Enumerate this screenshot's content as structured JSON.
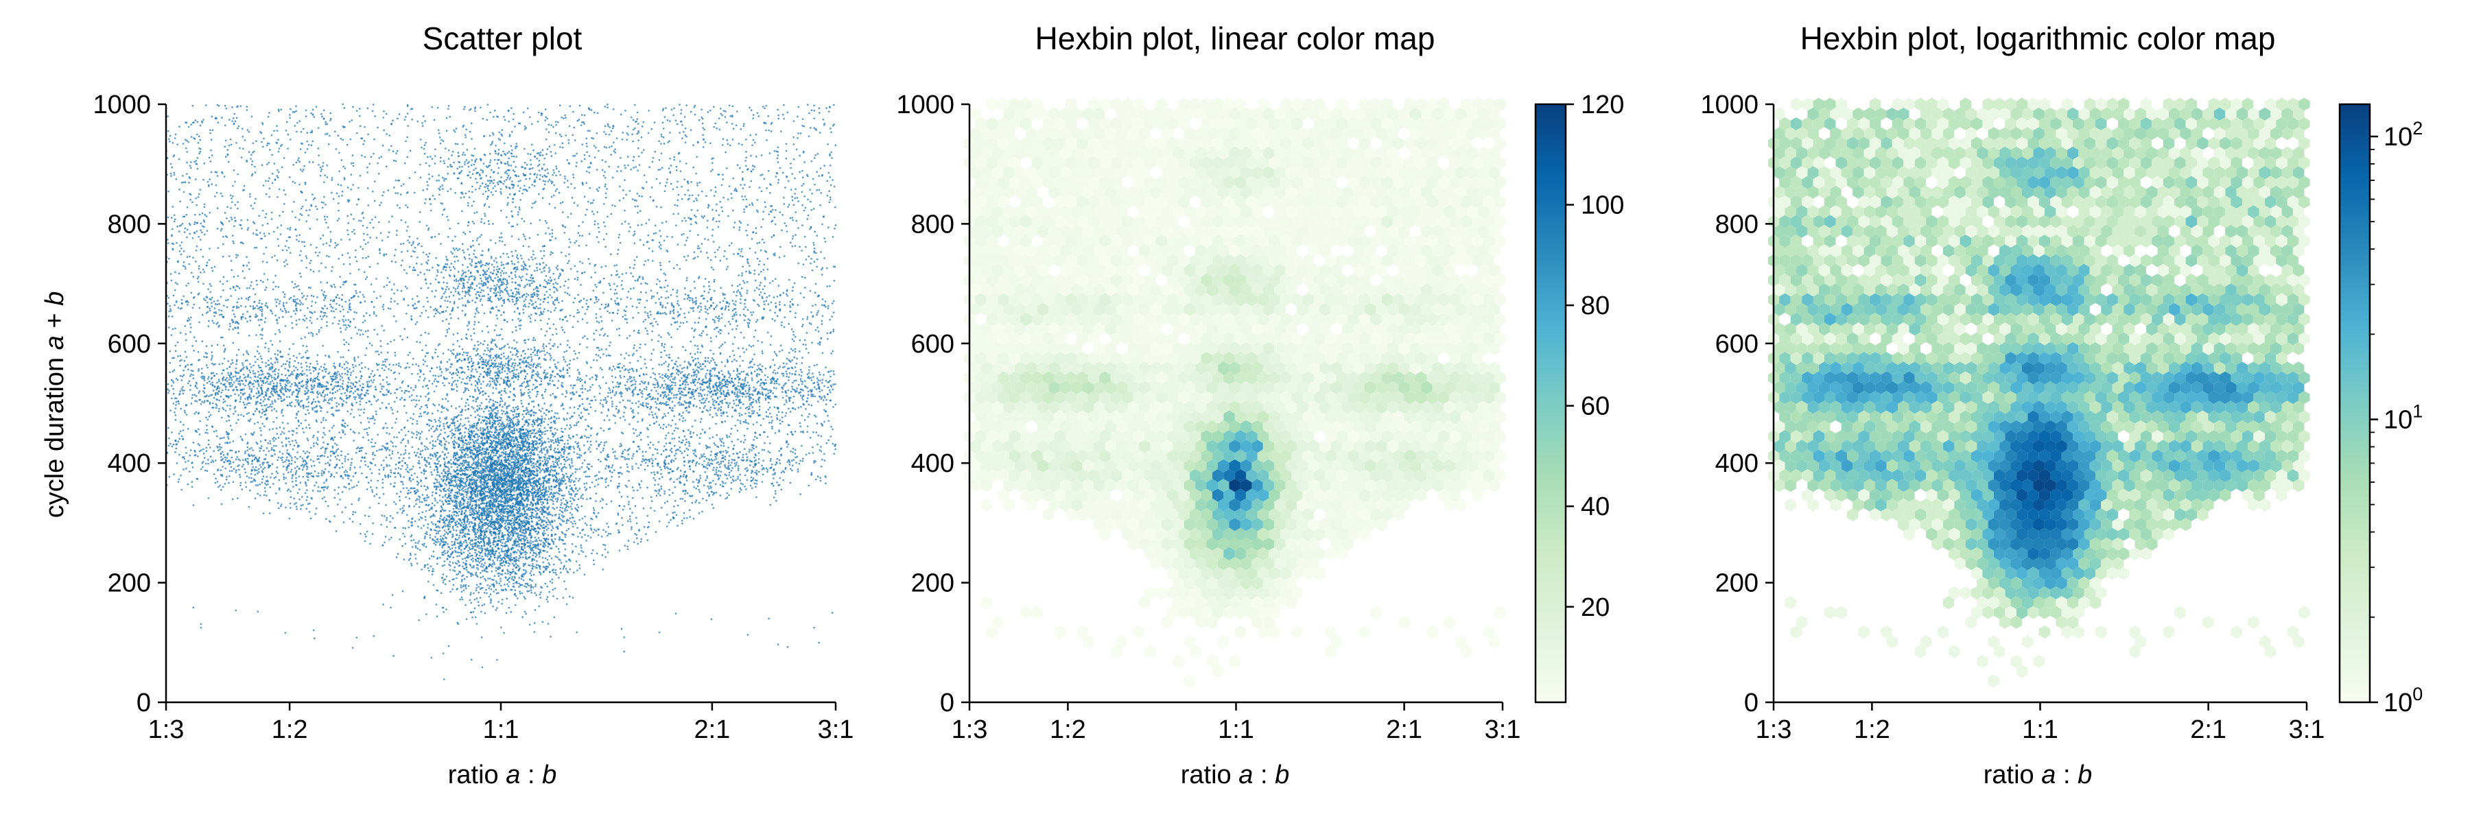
{
  "chart_data": [
    {
      "type": "scatter",
      "title": "Scatter plot",
      "xlabel": {
        "pre": "ratio ",
        "a": "a",
        "mid": " : ",
        "b": "b"
      },
      "ylabel": {
        "pre": "cycle duration ",
        "a": "a",
        "mid": " + ",
        "b": "b"
      },
      "x_scale": "log2 ratio",
      "xlim": [
        "1:3",
        "3:1"
      ],
      "ylim": [
        0,
        1000
      ],
      "x_ticks": [
        "1:3",
        "1:2",
        "1:1",
        "2:1",
        "3:1"
      ],
      "y_ticks": [
        "0",
        "200",
        "400",
        "600",
        "800",
        "1000"
      ],
      "marker_color": "#1f77b4",
      "clusters": [
        {
          "x_ratio": 1.0,
          "y": 290,
          "spread_y": 60,
          "density": "very high"
        },
        {
          "x_ratio": 1.0,
          "y": 370,
          "spread_y": 40,
          "density": "very high"
        },
        {
          "x_ratio": 1.0,
          "y": 450,
          "spread_y": 30,
          "density": "high"
        },
        {
          "x_ratio": 1.0,
          "y": 555,
          "spread_y": 25,
          "density": "medium"
        },
        {
          "x_ratio": 1.0,
          "y": 700,
          "spread_y": 30,
          "density": "medium"
        },
        {
          "x_ratio": 1.0,
          "y": 880,
          "spread_y": 25,
          "density": "low"
        },
        {
          "x_ratio": 0.5,
          "y": 530,
          "spread_y": 25,
          "density": "high"
        },
        {
          "x_ratio": 2.0,
          "y": 525,
          "spread_y": 25,
          "density": "high"
        },
        {
          "x_ratio": 0.5,
          "y": 400,
          "spread_y": 30,
          "density": "medium"
        },
        {
          "x_ratio": 2.0,
          "y": 400,
          "spread_y": 30,
          "density": "medium"
        },
        {
          "x_ratio": 0.5,
          "y": 660,
          "spread_y": 20,
          "density": "low"
        },
        {
          "x_ratio": 2.0,
          "y": 660,
          "spread_y": 20,
          "density": "low"
        }
      ]
    },
    {
      "type": "heatmap",
      "title": "Hexbin plot, linear color map",
      "xlabel": {
        "pre": "ratio ",
        "a": "a",
        "mid": " : ",
        "b": "b"
      },
      "xlim": [
        "1:3",
        "3:1"
      ],
      "ylim": [
        0,
        1000
      ],
      "x_ticks": [
        "1:3",
        "1:2",
        "1:1",
        "2:1",
        "3:1"
      ],
      "y_ticks": [
        "0",
        "200",
        "400",
        "600",
        "800",
        "1000"
      ],
      "colormap": "GnBu",
      "color_scale": "linear",
      "colorbar_range": [
        1,
        120
      ],
      "colorbar_ticks": [
        "20",
        "40",
        "60",
        "80",
        "100",
        "120"
      ],
      "peak": {
        "x_ratio": 1.0,
        "y": 370,
        "count": 120
      }
    },
    {
      "type": "heatmap",
      "title": "Hexbin plot, logarithmic color map",
      "xlabel": {
        "pre": "ratio ",
        "a": "a",
        "mid": " : ",
        "b": "b"
      },
      "xlim": [
        "1:3",
        "3:1"
      ],
      "ylim": [
        0,
        1000
      ],
      "x_ticks": [
        "1:3",
        "1:2",
        "1:1",
        "2:1",
        "3:1"
      ],
      "y_ticks": [
        "0",
        "200",
        "400",
        "600",
        "800",
        "1000"
      ],
      "colormap": "GnBu",
      "color_scale": "log",
      "colorbar_range": [
        1,
        130
      ],
      "colorbar_ticks": [
        {
          "base": "10",
          "exp": "0",
          "value": 1
        },
        {
          "base": "10",
          "exp": "1",
          "value": 10
        },
        {
          "base": "10",
          "exp": "2",
          "value": 100
        }
      ]
    }
  ],
  "colors": {
    "scatter": "#1f77b4",
    "gnbu_stops": [
      "#f7fcf0",
      "#e0f3db",
      "#ccebc5",
      "#a8ddb5",
      "#7bccc4",
      "#4eb3d3",
      "#2b8cbe",
      "#0868ac",
      "#084081"
    ]
  }
}
